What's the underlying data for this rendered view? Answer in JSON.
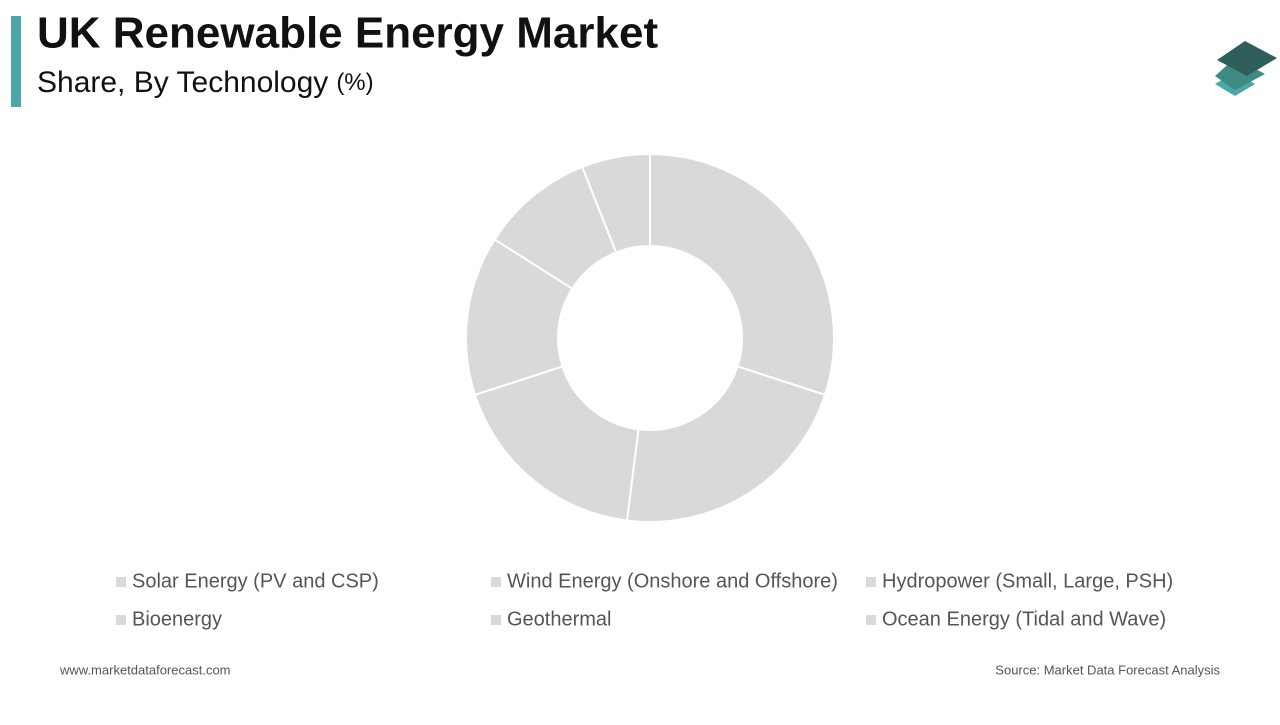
{
  "chart_data": {
    "type": "donut",
    "title": "UK Renewable Energy Market",
    "subtitle": "Share, By Technology",
    "unit": "(%)",
    "categories": [
      "Solar Energy (PV and CSP)",
      "Wind Energy (Onshore and Offshore)",
      "Hydropower (Small, Large, PSH)",
      "Bioenergy",
      "Geothermal",
      "Ocean Energy (Tidal and Wave)"
    ],
    "values": [
      30,
      22,
      18,
      14,
      10,
      6
    ],
    "color": "#d9d9d9",
    "website": "www.marketdataforecast.com",
    "source": "Source: Market Data Forecast Analysis"
  }
}
